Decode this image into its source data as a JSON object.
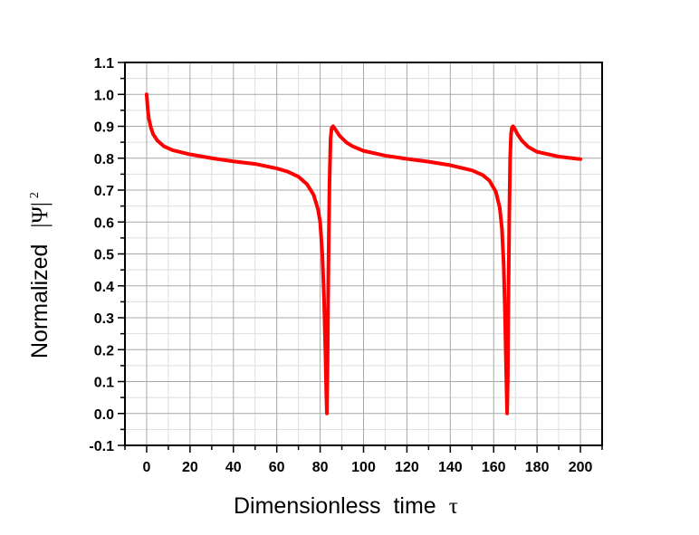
{
  "chart_data": {
    "type": "line",
    "xlabel": "Dimensionless  time",
    "xlabel_symbol": "τ",
    "ylabel": "Normalized",
    "ylabel_symbol": "|Ψ|",
    "ylabel_superscript": "2",
    "xlim": [
      -10,
      210
    ],
    "ylim": [
      -0.1,
      1.1
    ],
    "x_ticks": [
      "0",
      "20",
      "40",
      "60",
      "80",
      "100",
      "120",
      "140",
      "160",
      "180",
      "200"
    ],
    "y_ticks": [
      "-0.1",
      "0.0",
      "0.1",
      "0.2",
      "0.3",
      "0.4",
      "0.5",
      "0.6",
      "0.7",
      "0.8",
      "0.9",
      "1.0",
      "1.1"
    ],
    "grid": true,
    "legend": "none",
    "series": [
      {
        "color": "#ff0000",
        "x": [
          0,
          0.5,
          1,
          2,
          3,
          5,
          8,
          12,
          20,
          30,
          40,
          50,
          60,
          65,
          70,
          74,
          77,
          79,
          80,
          81,
          81.8,
          82.4,
          82.8,
          83.1,
          83.4,
          83.8,
          84.3,
          84.8,
          85.3,
          86,
          87.5,
          89,
          92,
          95,
          100,
          110,
          120,
          130,
          140,
          150,
          155,
          158,
          161,
          162.8,
          163.8,
          164.6,
          165.2,
          165.8,
          166.2,
          166.5,
          166.8,
          167.2,
          167.6,
          168,
          168.4,
          168.9,
          169.5,
          171,
          173,
          176,
          180,
          190,
          200
        ],
        "y": [
          1.0,
          0.955,
          0.925,
          0.895,
          0.875,
          0.855,
          0.837,
          0.825,
          0.812,
          0.8,
          0.79,
          0.782,
          0.768,
          0.758,
          0.742,
          0.718,
          0.685,
          0.64,
          0.6,
          0.5,
          0.36,
          0.2,
          0.07,
          0.0,
          0.15,
          0.45,
          0.72,
          0.86,
          0.895,
          0.9,
          0.885,
          0.87,
          0.85,
          0.837,
          0.823,
          0.808,
          0.798,
          0.789,
          0.778,
          0.762,
          0.747,
          0.73,
          0.695,
          0.645,
          0.58,
          0.47,
          0.32,
          0.12,
          0.0,
          0.1,
          0.35,
          0.62,
          0.8,
          0.875,
          0.895,
          0.9,
          0.895,
          0.875,
          0.855,
          0.835,
          0.82,
          0.805,
          0.797
        ]
      }
    ]
  }
}
